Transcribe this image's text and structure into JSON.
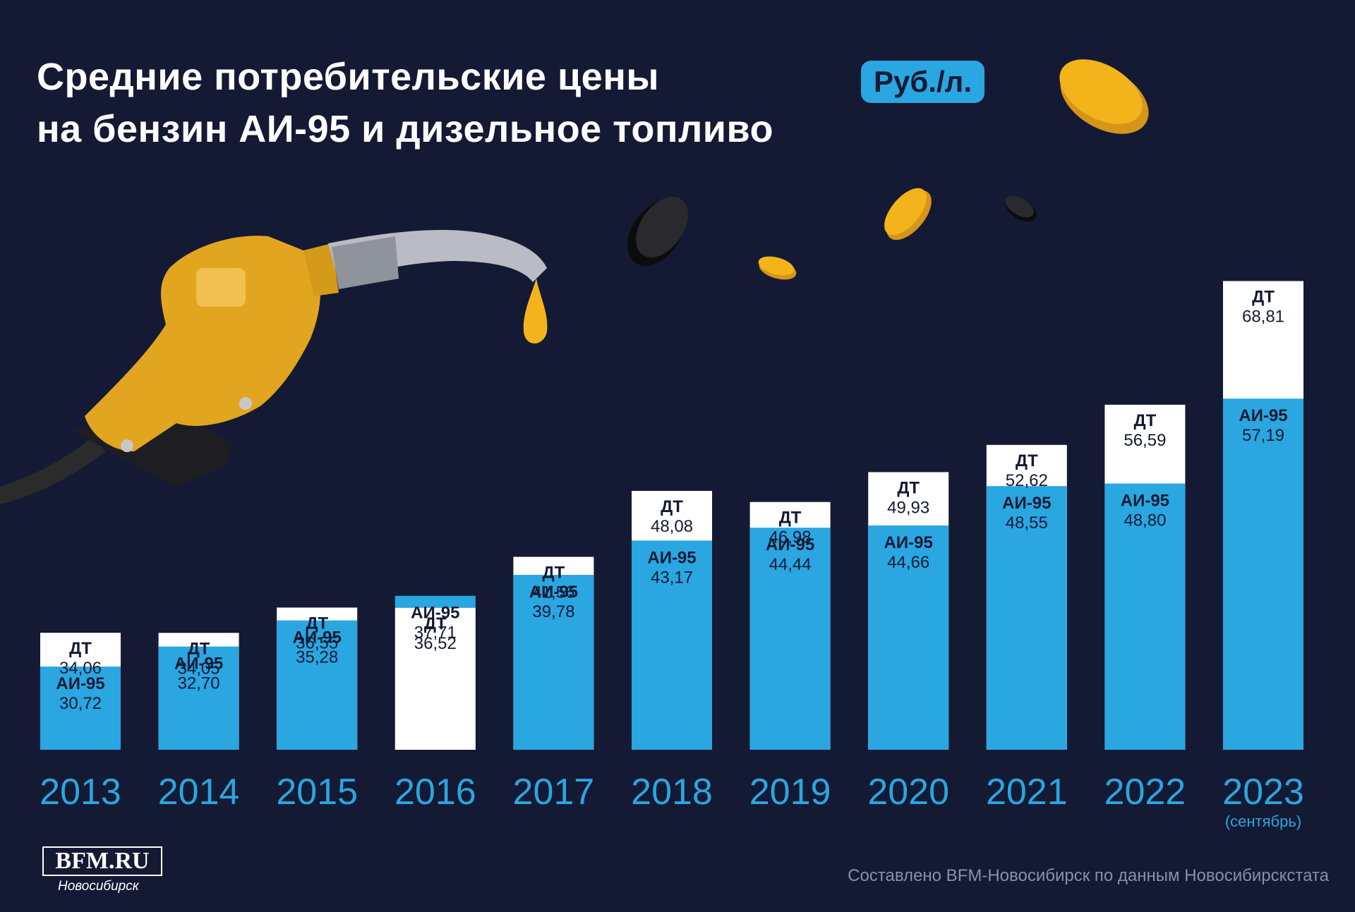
{
  "header": {
    "title_line1": "Средние потребительские цены",
    "title_line2": "на бензин АИ-95 и дизельное топливо",
    "unit_badge": "Руб./л."
  },
  "footer": {
    "source": "Составлено BFM-Новосибирск по данным Новосибирскстата",
    "logo_text": "BFM.RU",
    "logo_city": "Новосибирск"
  },
  "colors": {
    "background": "#141a34",
    "ai95": "#2aa6e1",
    "dt": "#ffffff",
    "year_text": "#2aa6e1",
    "dark_text": "#141a34",
    "nozzle": "#e2a520",
    "coin": "#f3b41b",
    "coin_dark": "#1a1a1a"
  },
  "icons": [
    "fuel-nozzle-icon",
    "fuel-drop-icon",
    "gold-coin-icon",
    "black-coin-icon"
  ],
  "chart_data": {
    "type": "bar",
    "stacked": false,
    "overlapping": true,
    "categories": [
      "2013",
      "2014",
      "2015",
      "2016",
      "2017",
      "2018",
      "2019",
      "2020",
      "2021",
      "2022",
      "2023"
    ],
    "category_notes": [
      "",
      "",
      "",
      "",
      "",
      "",
      "",
      "",
      "",
      "",
      "(сентябрь)"
    ],
    "series": [
      {
        "name": "АИ-95",
        "color": "#2aa6e1",
        "values": [
          30.72,
          32.7,
          35.28,
          37.71,
          39.78,
          43.17,
          44.44,
          44.66,
          48.55,
          48.8,
          57.19
        ]
      },
      {
        "name": "ДТ",
        "color": "#ffffff",
        "values": [
          34.06,
          34.05,
          36.55,
          36.52,
          41.56,
          48.08,
          46.98,
          49.93,
          52.62,
          56.59,
          68.81
        ]
      }
    ],
    "value_labels": {
      "АИ-95": [
        "30,72",
        "32,70",
        "35,28",
        "37,71",
        "39,78",
        "43,17",
        "44,44",
        "44,66",
        "48,55",
        "48,80",
        "57,19"
      ],
      "ДТ": [
        "34,06",
        "34,05",
        "36,55",
        "36,52",
        "41,56",
        "48,08",
        "46,98",
        "49,93",
        "52,62",
        "56,59",
        "68,81"
      ]
    },
    "title": "Средние потребительские цены на бензин АИ-95 и дизельное топливо",
    "unit": "Руб./л.",
    "grid": false,
    "legend": "none"
  }
}
